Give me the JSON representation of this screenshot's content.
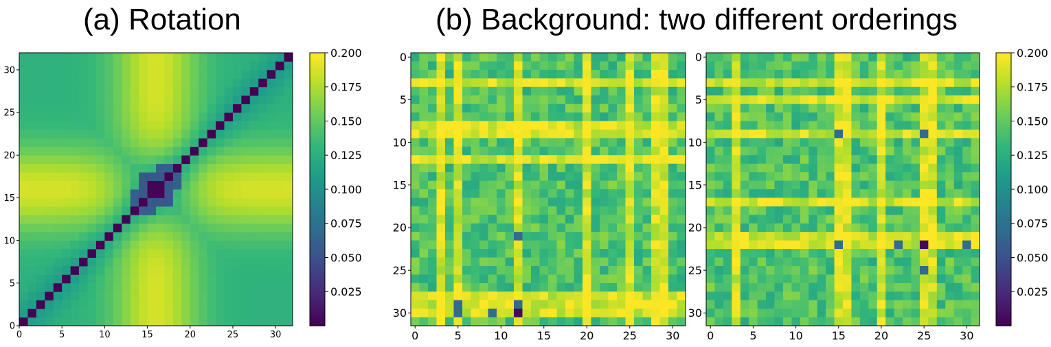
{
  "titles": {
    "a": "(a) Rotation",
    "b": "(b) Background: two different orderings"
  },
  "colormap": "viridis",
  "chart_data": [
    {
      "id": "rotation",
      "type": "heatmap",
      "title": "(a) Rotation",
      "size": 32,
      "origin": "lower",
      "xticks": [
        0,
        5,
        10,
        15,
        20,
        25,
        30
      ],
      "yticks": [
        0,
        5,
        10,
        15,
        20,
        25,
        30
      ],
      "value_range": [
        0.0,
        0.2
      ],
      "generator": "rotation: 0 on diagonal; 0.01 on center block rows/cols 15-16; pattern peaks ~0.2 around index 15-16 on off-axis, ~0.13 baseline"
    },
    {
      "id": "background-1",
      "type": "heatmap",
      "title": "(b) Background: two different orderings",
      "size": 32,
      "origin": "upper",
      "xticks": [
        0,
        5,
        10,
        15,
        20,
        25,
        30
      ],
      "yticks": [
        0,
        5,
        10,
        15,
        20,
        25,
        30
      ],
      "value_range": [
        0.0,
        0.2
      ],
      "bright_rows": [
        3,
        8,
        9,
        12,
        28,
        29,
        30
      ],
      "bright_cols": [
        3,
        5,
        12,
        20,
        25,
        28,
        29
      ],
      "dark_cells": [
        [
          30,
          12
        ],
        [
          29,
          5
        ],
        [
          30,
          5
        ],
        [
          29,
          12
        ],
        [
          21,
          12
        ],
        [
          30,
          9
        ]
      ]
    },
    {
      "id": "background-2",
      "type": "heatmap",
      "size": 32,
      "origin": "upper",
      "xticks": [
        0,
        5,
        10,
        15,
        20,
        25,
        30
      ],
      "yticks": [
        0,
        5,
        10,
        15,
        20,
        25,
        30
      ],
      "value_range": [
        0.0,
        0.2
      ],
      "bright_rows": [
        3,
        5,
        9,
        17,
        21,
        22
      ],
      "bright_cols": [
        3,
        15,
        16,
        20,
        25,
        26
      ],
      "dark_cells": [
        [
          22,
          25
        ],
        [
          9,
          15
        ],
        [
          9,
          25
        ],
        [
          22,
          15
        ],
        [
          22,
          22
        ],
        [
          22,
          30
        ],
        [
          25,
          25
        ]
      ]
    }
  ],
  "colorbar": {
    "ticks": [
      "0.200",
      "0.175",
      "0.150",
      "0.125",
      "0.100",
      "0.075",
      "0.050",
      "0.025"
    ],
    "tick_values": [
      0.2,
      0.175,
      0.15,
      0.125,
      0.1,
      0.075,
      0.05,
      0.025
    ],
    "range": [
      0.0,
      0.2
    ]
  }
}
